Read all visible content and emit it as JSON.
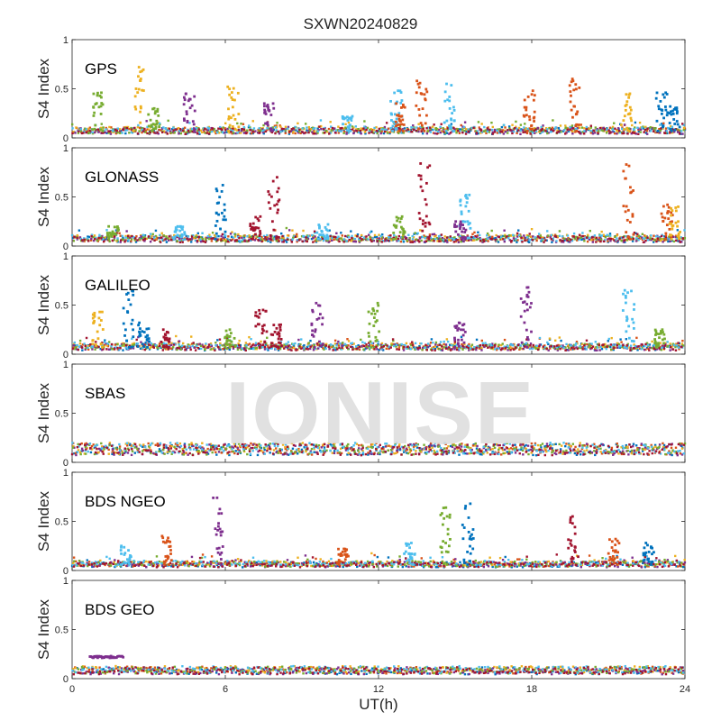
{
  "figure": {
    "title": "SXWN20240829",
    "xlabel": "UT(h)",
    "watermark": "IONISE"
  },
  "chart_data": [
    {
      "type": "scatter",
      "title": "GPS",
      "xlabel": "UT(h)",
      "ylabel": "S4 Index",
      "xlim": [
        0,
        24
      ],
      "ylim": [
        0,
        1
      ],
      "x_ticks": [
        "0",
        "6",
        "12",
        "18",
        "24"
      ],
      "y_ticks": [
        "0",
        "0.5",
        "1"
      ],
      "baseline": 0.07,
      "bursts": [
        {
          "x": 1.0,
          "peak": 0.46,
          "color": "#77AC30"
        },
        {
          "x": 2.6,
          "peak": 0.72,
          "color": "#EDB120"
        },
        {
          "x": 3.2,
          "peak": 0.3,
          "color": "#77AC30"
        },
        {
          "x": 4.6,
          "peak": 0.45,
          "color": "#7E2F8E"
        },
        {
          "x": 6.3,
          "peak": 0.52,
          "color": "#EDB120"
        },
        {
          "x": 7.7,
          "peak": 0.35,
          "color": "#7E2F8E"
        },
        {
          "x": 10.8,
          "peak": 0.22,
          "color": "#4DBEEE"
        },
        {
          "x": 12.7,
          "peak": 0.48,
          "color": "#4DBEEE"
        },
        {
          "x": 12.9,
          "peak": 0.35,
          "color": "#D95319"
        },
        {
          "x": 13.7,
          "peak": 0.58,
          "color": "#D95319"
        },
        {
          "x": 14.8,
          "peak": 0.55,
          "color": "#4DBEEE"
        },
        {
          "x": 17.9,
          "peak": 0.48,
          "color": "#D95319"
        },
        {
          "x": 19.7,
          "peak": 0.6,
          "color": "#D95319"
        },
        {
          "x": 21.7,
          "peak": 0.45,
          "color": "#EDB120"
        },
        {
          "x": 23.1,
          "peak": 0.46,
          "color": "#0072BD"
        },
        {
          "x": 23.6,
          "peak": 0.32,
          "color": "#0072BD"
        }
      ]
    },
    {
      "type": "scatter",
      "title": "GLONASS",
      "xlabel": "UT(h)",
      "ylabel": "S4 Index",
      "xlim": [
        0,
        24
      ],
      "ylim": [
        0,
        1
      ],
      "x_ticks": [
        "0",
        "6",
        "12",
        "18",
        "24"
      ],
      "y_ticks": [
        "0",
        "0.5",
        "1"
      ],
      "baseline": 0.07,
      "bursts": [
        {
          "x": 1.6,
          "peak": 0.2,
          "color": "#77AC30"
        },
        {
          "x": 4.2,
          "peak": 0.2,
          "color": "#4DBEEE"
        },
        {
          "x": 5.8,
          "peak": 0.62,
          "color": "#0072BD"
        },
        {
          "x": 7.2,
          "peak": 0.3,
          "color": "#A2142F"
        },
        {
          "x": 7.9,
          "peak": 0.7,
          "color": "#A2142F"
        },
        {
          "x": 9.8,
          "peak": 0.22,
          "color": "#4DBEEE"
        },
        {
          "x": 12.8,
          "peak": 0.3,
          "color": "#77AC30"
        },
        {
          "x": 13.8,
          "peak": 0.84,
          "color": "#A2142F"
        },
        {
          "x": 15.4,
          "peak": 0.52,
          "color": "#4DBEEE"
        },
        {
          "x": 15.2,
          "peak": 0.25,
          "color": "#7E2F8E"
        },
        {
          "x": 21.8,
          "peak": 0.83,
          "color": "#D95319"
        },
        {
          "x": 23.3,
          "peak": 0.42,
          "color": "#D95319"
        },
        {
          "x": 23.6,
          "peak": 0.4,
          "color": "#EDB120"
        }
      ]
    },
    {
      "type": "scatter",
      "title": "GALILEO",
      "xlabel": "UT(h)",
      "ylabel": "S4 Index",
      "xlim": [
        0,
        24
      ],
      "ylim": [
        0,
        1
      ],
      "x_ticks": [
        "0",
        "6",
        "12",
        "18",
        "24"
      ],
      "y_ticks": [
        "0",
        "0.5",
        "1"
      ],
      "baseline": 0.07,
      "bursts": [
        {
          "x": 1.0,
          "peak": 0.43,
          "color": "#EDB120"
        },
        {
          "x": 2.2,
          "peak": 0.65,
          "color": "#0072BD"
        },
        {
          "x": 2.8,
          "peak": 0.32,
          "color": "#0072BD"
        },
        {
          "x": 3.6,
          "peak": 0.25,
          "color": "#A2142F"
        },
        {
          "x": 6.2,
          "peak": 0.25,
          "color": "#77AC30"
        },
        {
          "x": 7.4,
          "peak": 0.45,
          "color": "#A2142F"
        },
        {
          "x": 8.0,
          "peak": 0.3,
          "color": "#A2142F"
        },
        {
          "x": 9.6,
          "peak": 0.52,
          "color": "#7E2F8E"
        },
        {
          "x": 11.8,
          "peak": 0.52,
          "color": "#77AC30"
        },
        {
          "x": 15.2,
          "peak": 0.32,
          "color": "#7E2F8E"
        },
        {
          "x": 17.8,
          "peak": 0.68,
          "color": "#7E2F8E"
        },
        {
          "x": 21.8,
          "peak": 0.65,
          "color": "#4DBEEE"
        },
        {
          "x": 23.0,
          "peak": 0.25,
          "color": "#77AC30"
        }
      ]
    },
    {
      "type": "scatter",
      "title": "SBAS",
      "xlabel": "UT(h)",
      "ylabel": "S4 Index",
      "xlim": [
        0,
        24
      ],
      "ylim": [
        0,
        1
      ],
      "x_ticks": [
        "0",
        "6",
        "12",
        "18",
        "24"
      ],
      "y_ticks": [
        "0",
        "0.5",
        "1"
      ],
      "baseline": 0.13,
      "bursts": []
    },
    {
      "type": "scatter",
      "title": "BDS NGEO",
      "xlabel": "UT(h)",
      "ylabel": "S4 Index",
      "xlim": [
        0,
        24
      ],
      "ylim": [
        0,
        1
      ],
      "x_ticks": [
        "0",
        "6",
        "12",
        "18",
        "24"
      ],
      "y_ticks": [
        "0",
        "0.5",
        "1"
      ],
      "baseline": 0.06,
      "bursts": [
        {
          "x": 2.1,
          "peak": 0.25,
          "color": "#4DBEEE"
        },
        {
          "x": 3.7,
          "peak": 0.35,
          "color": "#D95319"
        },
        {
          "x": 5.7,
          "peak": 0.74,
          "color": "#7E2F8E"
        },
        {
          "x": 10.6,
          "peak": 0.22,
          "color": "#D95319"
        },
        {
          "x": 13.2,
          "peak": 0.28,
          "color": "#4DBEEE"
        },
        {
          "x": 14.6,
          "peak": 0.64,
          "color": "#77AC30"
        },
        {
          "x": 15.5,
          "peak": 0.68,
          "color": "#0072BD"
        },
        {
          "x": 19.6,
          "peak": 0.55,
          "color": "#A2142F"
        },
        {
          "x": 21.2,
          "peak": 0.32,
          "color": "#D95319"
        },
        {
          "x": 22.6,
          "peak": 0.28,
          "color": "#0072BD"
        }
      ]
    },
    {
      "type": "scatter",
      "title": "BDS GEO",
      "xlabel": "UT(h)",
      "ylabel": "S4 Index",
      "xlim": [
        0,
        24
      ],
      "ylim": [
        0,
        1
      ],
      "x_ticks": [
        "0",
        "6",
        "12",
        "18",
        "24"
      ],
      "y_ticks": [
        "0",
        "0.5",
        "1"
      ],
      "baseline": 0.08,
      "bursts": [],
      "segment": {
        "x_start": 0.7,
        "x_end": 2.0,
        "y": 0.22,
        "color": "#7E2F8E"
      }
    }
  ],
  "colors": {
    "axes_bg": "#ffffff",
    "figure_bg": "#f0f0f0",
    "axis": "#262626",
    "palette": [
      "#0072BD",
      "#D95319",
      "#EDB120",
      "#7E2F8E",
      "#77AC30",
      "#4DBEEE",
      "#A2142F"
    ]
  }
}
